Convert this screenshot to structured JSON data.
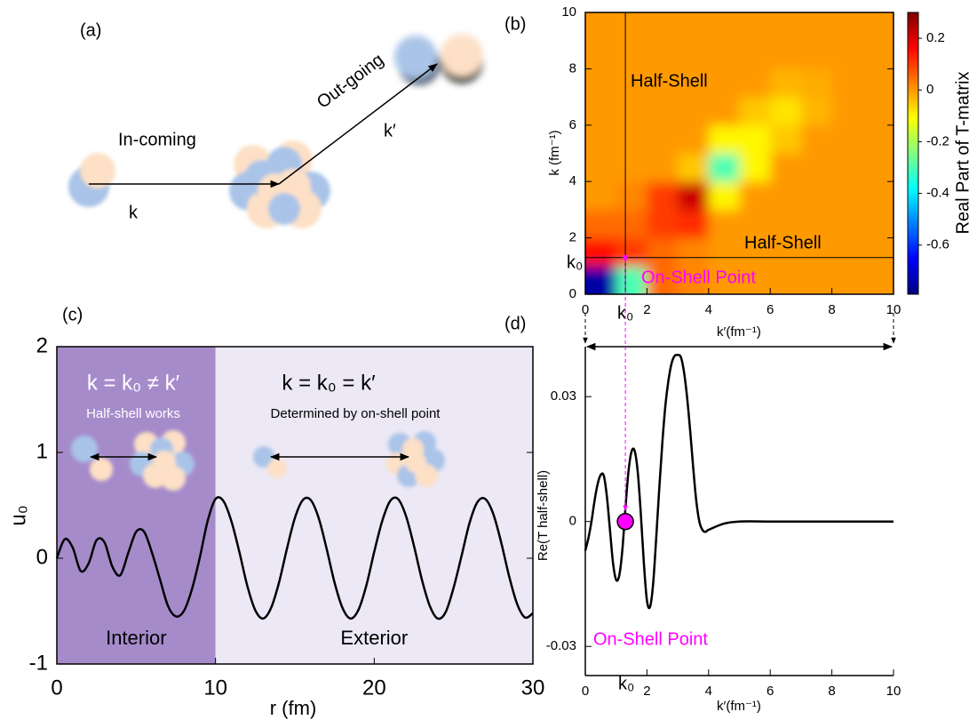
{
  "diagram": {
    "panel_label": "(a)",
    "incoming": "In-coming",
    "outgoing": "Out-going",
    "k": "k",
    "k_prime": "k′"
  },
  "chart_data": [
    {
      "type": "heatmap",
      "panel_label": "(b)",
      "x_label": "k′(fm⁻¹)",
      "y_label": "k (fm⁻¹)",
      "colorbar_label": "Real Part of T-matrix",
      "x": [
        0.5,
        1.5,
        2.5,
        3.5,
        4.5,
        5.5,
        6.5,
        7.5,
        8.5,
        9.5
      ],
      "y": [
        0.5,
        1.5,
        2.5,
        3.5,
        4.5,
        5.5,
        6.5,
        7.5,
        8.5,
        9.5
      ],
      "z": [
        [
          -0.75,
          -0.3,
          0.05,
          0.02,
          0,
          0,
          0,
          0,
          0,
          0
        ],
        [
          0.15,
          0.1,
          0.05,
          0.02,
          0,
          0,
          0,
          0,
          0,
          0
        ],
        [
          0.05,
          0.05,
          0.1,
          0.12,
          0,
          0,
          0,
          0,
          0,
          0
        ],
        [
          0,
          0.02,
          0.1,
          0.22,
          -0.1,
          0,
          0,
          0,
          0,
          0
        ],
        [
          0,
          0,
          0,
          -0.05,
          -0.3,
          -0.1,
          0,
          0,
          0,
          0
        ],
        [
          0,
          0,
          0,
          0,
          -0.1,
          -0.1,
          -0.05,
          0,
          0,
          0
        ],
        [
          0,
          0,
          0,
          0,
          0,
          -0.05,
          -0.08,
          -0.03,
          0,
          0
        ],
        [
          0,
          0,
          0,
          0,
          0,
          0,
          -0.03,
          -0.02,
          0,
          0
        ],
        [
          0,
          0,
          0,
          0,
          0,
          0,
          0,
          0,
          0,
          0
        ],
        [
          0,
          0,
          0,
          0,
          0,
          0,
          0,
          0,
          0,
          0
        ]
      ],
      "xlim": [
        0,
        10
      ],
      "ylim": [
        0,
        10
      ],
      "xticks": [
        0,
        2,
        4,
        6,
        8,
        10
      ],
      "yticks": [
        0,
        2,
        4,
        6,
        8,
        10
      ],
      "clim": [
        -0.79,
        0.3
      ],
      "cticks": [
        -0.6,
        -0.4,
        -0.2,
        0,
        0.2
      ],
      "colorscale": [
        "#00007f",
        "#0000ff",
        "#007fff",
        "#00ffff",
        "#7fff7f",
        "#ffff00",
        "#ff7f00",
        "#ff0000",
        "#7f0000"
      ],
      "on_shell_point": {
        "x": 1.3,
        "y": 1.3,
        "color": "#ff00ff"
      },
      "annotations": [
        "Half-Shell",
        "Half-Shell",
        "On-Shell Point",
        "k₀",
        "k₀"
      ]
    },
    {
      "type": "line",
      "panel_label": "(c)",
      "x_label": "r (fm)",
      "y_label": "u₀",
      "x": [
        0,
        0.5,
        1,
        1.5,
        2,
        2.5,
        3,
        3.5,
        4,
        4.5,
        5,
        5.5,
        6,
        6.5,
        7,
        7.5,
        8,
        8.5,
        9,
        9.5,
        10,
        10.5,
        11,
        11.5,
        12,
        12.5,
        13,
        13.5,
        14,
        14.5,
        15,
        15.5,
        16,
        16.5,
        17,
        17.5,
        18,
        18.5,
        19,
        19.5,
        20,
        20.5,
        21,
        21.5,
        22,
        22.5,
        23,
        23.5,
        24,
        24.5,
        25,
        25.5,
        26,
        26.5,
        27,
        27.5,
        28,
        28.5,
        29,
        29.5,
        30
      ],
      "values": [
        0,
        0.18,
        0.1,
        -0.12,
        -0.05,
        0.17,
        0.15,
        -0.08,
        -0.16,
        0.05,
        0.25,
        0.25,
        0.05,
        -0.2,
        -0.45,
        -0.55,
        -0.5,
        -0.3,
        0,
        0.35,
        0.56,
        0.54,
        0.35,
        0.06,
        -0.26,
        -0.49,
        -0.57,
        -0.47,
        -0.23,
        0.09,
        0.38,
        0.55,
        0.55,
        0.38,
        0.09,
        -0.23,
        -0.47,
        -0.57,
        -0.49,
        -0.26,
        0.06,
        0.35,
        0.54,
        0.56,
        0.4,
        0.12,
        -0.2,
        -0.45,
        -0.57,
        -0.51,
        -0.28,
        0.02,
        0.33,
        0.53,
        0.56,
        0.42,
        0.15,
        -0.17,
        -0.43,
        -0.56,
        -0.52
      ],
      "color": "#000000",
      "xlim": [
        0,
        30
      ],
      "ylim": [
        -1,
        2
      ],
      "xticks": [
        0,
        10,
        20,
        30
      ],
      "yticks": [
        -1,
        0,
        1,
        2
      ],
      "regions": [
        {
          "name": "Interior",
          "from": 0,
          "to": 10,
          "color": "#a68bcb"
        },
        {
          "name": "Exterior",
          "from": 10,
          "to": 30,
          "color": "#ece8f5"
        }
      ],
      "annotations": [
        "k = k₀ ≠ k′",
        "Half-shell works",
        "k = k₀ = k′",
        "Determined by on-shell point"
      ]
    },
    {
      "type": "line",
      "panel_label": "(d)",
      "x_label": "k′(fm⁻¹)",
      "y_label": "Re(T half-shell)",
      "x": [
        0,
        0.1,
        0.2,
        0.3,
        0.4,
        0.5,
        0.6,
        0.7,
        0.8,
        0.9,
        1,
        1.1,
        1.2,
        1.3,
        1.4,
        1.5,
        1.6,
        1.7,
        1.8,
        1.9,
        2,
        2.1,
        2.2,
        2.3,
        2.4,
        2.5,
        2.6,
        2.7,
        2.8,
        2.9,
        3,
        3.1,
        3.2,
        3.3,
        3.4,
        3.5,
        3.6,
        3.7,
        3.8,
        3.9,
        4,
        4.5,
        5,
        6,
        7,
        8,
        9,
        10
      ],
      "values": [
        -0.007,
        -0.004,
        0,
        0.005,
        0.009,
        0.0112,
        0.011,
        0.006,
        -0.002,
        -0.01,
        -0.014,
        -0.013,
        -0.007,
        0.003,
        0.012,
        0.0168,
        0.017,
        0.012,
        0.002,
        -0.01,
        -0.019,
        -0.0205,
        -0.015,
        -0.004,
        0.008,
        0.019,
        0.028,
        0.034,
        0.038,
        0.0398,
        0.04,
        0.0395,
        0.036,
        0.03,
        0.022,
        0.013,
        0.005,
        0,
        -0.002,
        -0.0025,
        -0.002,
        -0.0005,
        0,
        0,
        0,
        0,
        0,
        0
      ],
      "color": "#000000",
      "xlim": [
        0,
        10
      ],
      "ylim": [
        -0.037,
        0.042
      ],
      "xticks": [
        0,
        2,
        4,
        6,
        8,
        10
      ],
      "yticks": [
        -0.03,
        0,
        0.03
      ],
      "on_shell_point": {
        "x": 1.3,
        "y": 0,
        "color": "#ff00ff"
      },
      "annotations": [
        "On-Shell Point",
        "k₀"
      ]
    }
  ]
}
